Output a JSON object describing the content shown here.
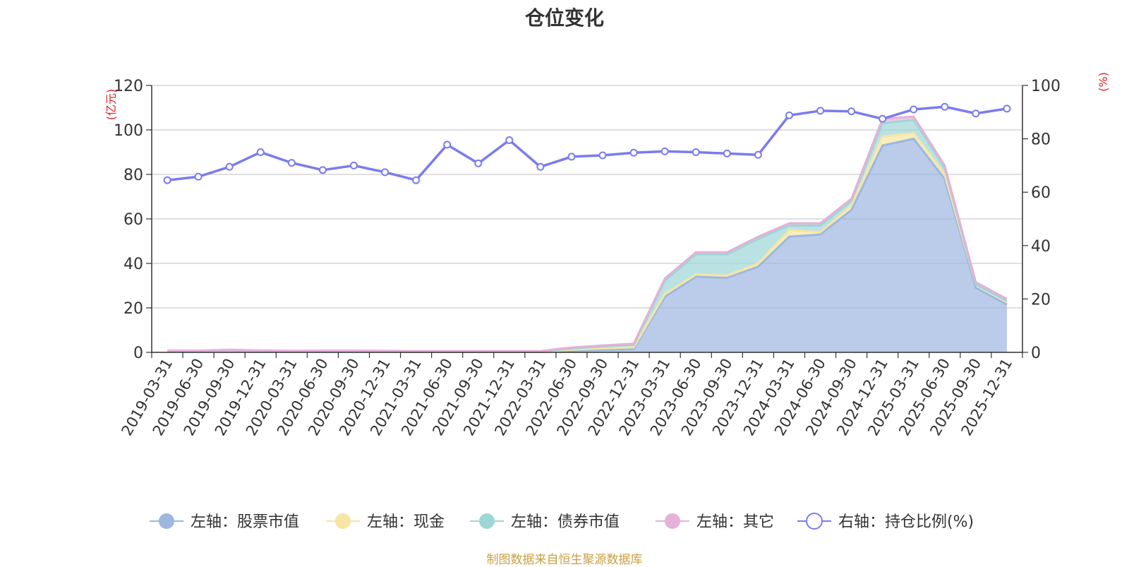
{
  "chart_data": {
    "type": "area",
    "title": "仓位变化",
    "source": "制图数据来自恒生聚源数据库",
    "left_axis": {
      "unit": "(亿元)",
      "ticks": [
        "0",
        "20",
        "40",
        "60",
        "80",
        "100",
        "120"
      ],
      "ylim": [
        0,
        120
      ]
    },
    "right_axis": {
      "unit": "(%)",
      "ticks": [
        "0",
        "20",
        "40",
        "60",
        "80",
        "100"
      ],
      "ylim": [
        0,
        100
      ]
    },
    "x_labels_shown": [
      "2019-03-31",
      "2019-06-30",
      "2019-09-30",
      "2019-12-31",
      "2020-03-31",
      "2020-06-30",
      "2020-09-30",
      "2020-12-31",
      "2021-03-31",
      "2021-06-30",
      "2021-09-30",
      "2021-12-31",
      "2022-03-31",
      "2022-06-30",
      "2022-09-30",
      "2022-12-31",
      "2023-03-31",
      "2023-06-30",
      "2023-09-30",
      "2023-12-31",
      "2024-03-31",
      "2024-06-30",
      "2024-09-30",
      "2024-12-31",
      "2025-03-31",
      "2025-06-30",
      "2025-09-30",
      "2025-12-31"
    ],
    "categories": [
      "2019-03-31",
      "2019-06-30",
      "2019-09-30",
      "2019-12-31",
      "2020-03-31",
      "2020-06-30",
      "2020-09-30",
      "2020-12-31",
      "2021-03-31",
      "2021-06-30",
      "2021-09-30",
      "2021-12-31",
      "2022-03-31",
      "2022-06-30",
      "2022-09-30",
      "2022-12-31",
      "2023-03-31",
      "2023-06-30",
      "2023-09-30",
      "2023-12-31",
      "2024-03-31",
      "2024-06-30",
      "2024-09-30",
      "2024-12-31",
      "2025-03-31",
      "2025-06-30",
      "2025-09-30",
      "2025-12-31"
    ],
    "series": [
      {
        "name": "左轴：股票市值",
        "axis": "left",
        "color": "#9db7e0",
        "values": [
          0.4,
          0.4,
          0.8,
          0.5,
          0.3,
          0.4,
          0.4,
          0.3,
          0.2,
          0.2,
          0.2,
          0.2,
          0.2,
          0.8,
          1.2,
          1.5,
          25,
          34,
          33.5,
          38.5,
          52,
          53,
          64,
          93,
          96,
          78,
          29,
          21.5
        ]
      },
      {
        "name": "左轴：现金",
        "axis": "left",
        "color": "#f5e6a3",
        "values": [
          0.1,
          0.1,
          0.1,
          0.1,
          0.1,
          0.1,
          0.1,
          0.1,
          0.1,
          0.1,
          0.1,
          0.1,
          0.1,
          0.4,
          0.6,
          0.8,
          1.2,
          1.0,
          1.0,
          1.5,
          3.0,
          1.0,
          2.0,
          4.0,
          2.5,
          2.0,
          1.5,
          1.5
        ]
      },
      {
        "name": "左轴：债券市值",
        "axis": "left",
        "color": "#9ed6d6",
        "values": [
          0,
          0,
          0,
          0,
          0,
          0,
          0,
          0,
          0,
          0,
          0,
          0,
          0,
          0.5,
          0.8,
          1.0,
          6.0,
          9.0,
          9.5,
          11,
          2,
          3,
          2,
          6,
          6,
          3,
          0,
          0
        ]
      },
      {
        "name": "左轴：其它",
        "axis": "left",
        "color": "#e6b0d8",
        "values": [
          0.3,
          0.3,
          0.3,
          0.3,
          0.3,
          0.3,
          0.3,
          0.3,
          0.3,
          0.3,
          0.3,
          0.3,
          0.3,
          0.5,
          0.5,
          0.6,
          1.0,
          1.0,
          1.0,
          1.0,
          1.0,
          1.0,
          1.0,
          2.0,
          1.5,
          1.0,
          1.0,
          1.0
        ]
      },
      {
        "name": "右轴：持仓比例(%)",
        "axis": "right",
        "color": "#7b7bee",
        "values": [
          64.5,
          65.8,
          69.5,
          75,
          71,
          68.3,
          70,
          67.5,
          64.5,
          77.8,
          70.8,
          79.5,
          69.5,
          73.3,
          73.8,
          74.8,
          75.3,
          75,
          74.5,
          74,
          88.8,
          90.5,
          90.3,
          87.5,
          91,
          92,
          89.5,
          91.3
        ]
      }
    ]
  }
}
